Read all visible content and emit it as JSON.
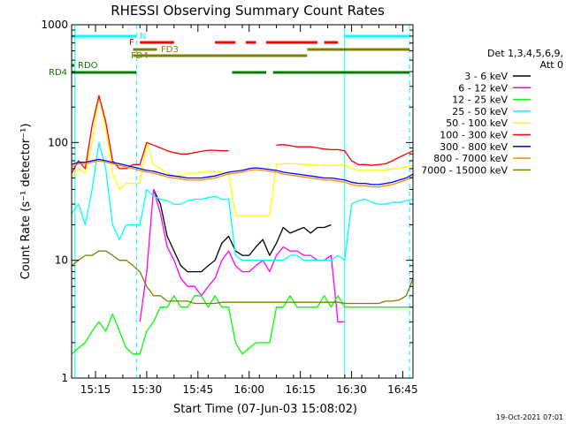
{
  "chart_data": {
    "type": "line",
    "title": "RHESSI Observing Summary Count Rates",
    "xlabel": "Start Time (07-Jun-03 15:08:02)",
    "ylabel": "Count Rate (s⁻¹ detector⁻¹)",
    "xlim": [
      "15:08",
      "16:48"
    ],
    "ylim": [
      1,
      1000
    ],
    "yscale": "log",
    "x_ticks": [
      "15:15",
      "15:30",
      "15:45",
      "16:00",
      "16:15",
      "16:30",
      "16:45"
    ],
    "y_ticks": [
      "1",
      "10",
      "100",
      "1000"
    ],
    "legend_header": [
      "Det 1,3,4,5,6,9,",
      "Att 0"
    ],
    "legend_position": "right",
    "x": [
      "15:08",
      "15:10",
      "15:12",
      "15:14",
      "15:16",
      "15:18",
      "15:20",
      "15:22",
      "15:24",
      "15:26",
      "15:28",
      "15:30",
      "15:32",
      "15:34",
      "15:36",
      "15:38",
      "15:40",
      "15:42",
      "15:44",
      "15:46",
      "15:48",
      "15:50",
      "15:52",
      "15:54",
      "15:56",
      "15:58",
      "16:00",
      "16:02",
      "16:04",
      "16:06",
      "16:08",
      "16:10",
      "16:12",
      "16:14",
      "16:16",
      "16:18",
      "16:20",
      "16:22",
      "16:24",
      "16:26",
      "16:28",
      "16:30",
      "16:32",
      "16:34",
      "16:36",
      "16:38",
      "16:40",
      "16:42",
      "16:44",
      "16:46",
      "16:48"
    ],
    "series": [
      {
        "name": "3 - 6 keV",
        "color": "#000000",
        "values": [
          null,
          null,
          null,
          null,
          null,
          null,
          null,
          null,
          null,
          null,
          null,
          null,
          40,
          30,
          16,
          12,
          9,
          8,
          8,
          8,
          9,
          10,
          14,
          16,
          12,
          11,
          11,
          13,
          15,
          11,
          14,
          19,
          17,
          18,
          19,
          17,
          19,
          19,
          20,
          null,
          null,
          null,
          null,
          null,
          null,
          null,
          null,
          null,
          null,
          null,
          null
        ]
      },
      {
        "name": "6 - 12 keV",
        "color": "#ff00ff",
        "values": [
          null,
          null,
          null,
          null,
          null,
          null,
          null,
          null,
          null,
          null,
          3,
          8,
          40,
          25,
          13,
          10,
          7,
          6,
          6,
          5,
          6,
          7,
          10,
          12,
          9,
          8,
          8,
          9,
          10,
          8,
          11,
          13,
          12,
          12,
          11,
          11,
          10,
          10,
          11,
          3,
          3,
          null,
          null,
          null,
          null,
          null,
          null,
          null,
          null,
          null,
          null
        ]
      },
      {
        "name": "12 - 25 keV",
        "color": "#00ff00",
        "values": [
          1.6,
          1.8,
          2,
          2.5,
          3,
          2.5,
          3.5,
          2.5,
          1.8,
          1.6,
          1.6,
          2.5,
          3,
          4,
          4,
          5,
          4,
          4,
          5,
          5,
          4,
          5,
          4,
          4,
          2,
          1.6,
          1.8,
          2,
          2,
          2,
          4,
          4,
          5,
          4,
          4,
          4,
          4,
          5,
          4,
          5,
          4,
          4,
          4,
          4,
          4,
          4,
          4,
          4,
          4,
          4,
          4
        ]
      },
      {
        "name": "25 - 50 keV",
        "color": "#00ffff",
        "values": [
          25,
          30,
          20,
          40,
          100,
          60,
          20,
          15,
          20,
          20,
          20,
          40,
          35,
          33,
          32,
          30,
          30,
          32,
          33,
          33,
          34,
          35,
          33,
          33,
          11,
          10,
          10,
          10,
          10,
          10,
          10,
          10,
          11,
          11,
          10,
          10,
          10,
          10,
          10,
          11,
          10,
          30,
          32,
          33,
          31,
          30,
          30,
          31,
          31,
          32,
          33
        ]
      },
      {
        "name": "50 - 100 keV",
        "color": "#ffff00",
        "values": [
          50,
          60,
          55,
          100,
          250,
          130,
          55,
          40,
          45,
          45,
          45,
          100,
          65,
          60,
          55,
          52,
          52,
          55,
          55,
          56,
          57,
          57,
          56,
          55,
          24,
          24,
          24,
          24,
          24,
          24,
          65,
          66,
          66,
          66,
          65,
          65,
          64,
          64,
          64,
          64,
          65,
          60,
          58,
          58,
          58,
          58,
          58,
          60,
          60,
          62,
          64
        ]
      },
      {
        "name": "100 - 300 keV",
        "color": "#ff0000",
        "values": [
          55,
          70,
          60,
          140,
          250,
          150,
          70,
          60,
          60,
          65,
          65,
          100,
          95,
          90,
          85,
          82,
          80,
          80,
          82,
          84,
          86,
          86,
          85,
          85,
          null,
          null,
          null,
          null,
          null,
          null,
          95,
          96,
          94,
          92,
          92,
          92,
          90,
          88,
          87,
          87,
          85,
          70,
          65,
          65,
          64,
          65,
          66,
          70,
          75,
          80,
          85
        ]
      },
      {
        "name": "300 - 800 keV",
        "color": "#0000ff",
        "values": [
          65,
          68,
          68,
          70,
          72,
          70,
          68,
          66,
          64,
          62,
          60,
          58,
          57,
          55,
          53,
          52,
          51,
          50,
          50,
          50,
          51,
          52,
          54,
          56,
          57,
          58,
          60,
          61,
          60,
          59,
          58,
          56,
          55,
          54,
          53,
          52,
          51,
          50,
          50,
          49,
          48,
          46,
          45,
          45,
          44,
          44,
          45,
          46,
          48,
          50,
          54
        ]
      },
      {
        "name": "800 - 7000 keV",
        "color": "#ff8c00",
        "values": [
          62,
          66,
          66,
          68,
          70,
          68,
          66,
          64,
          62,
          60,
          58,
          56,
          55,
          53,
          51,
          50,
          49,
          48,
          48,
          48,
          49,
          50,
          52,
          54,
          55,
          56,
          58,
          59,
          58,
          57,
          56,
          54,
          53,
          52,
          51,
          50,
          49,
          48,
          48,
          47,
          46,
          44,
          43,
          43,
          42,
          42,
          43,
          44,
          46,
          48,
          52
        ]
      },
      {
        "name": "7000 - 15000 keV",
        "color": "#808000",
        "values": [
          9,
          10,
          11,
          11,
          12,
          12,
          11,
          10,
          10,
          9,
          8,
          6,
          5,
          5,
          4.5,
          4.5,
          4.5,
          4.5,
          4.3,
          4.3,
          4.3,
          4.3,
          4.4,
          4.4,
          4.4,
          4.4,
          4.4,
          4.4,
          4.4,
          4.4,
          4.4,
          4.4,
          4.4,
          4.4,
          4.4,
          4.4,
          4.4,
          4.4,
          4.4,
          4.4,
          4.3,
          4.3,
          4.3,
          4.3,
          4.3,
          4.3,
          4.5,
          4.5,
          4.6,
          5,
          7
        ]
      }
    ],
    "flag_bars": [
      {
        "label": "N",
        "color": "#00ffff",
        "segments": [
          [
            "15:08",
            "15:27"
          ],
          [
            "16:28",
            "16:47"
          ]
        ]
      },
      {
        "label": "F",
        "color": "#ff0000",
        "segments": [
          [
            "15:28",
            "15:38"
          ],
          [
            "15:50",
            "15:56"
          ],
          [
            "15:59",
            "16:02"
          ],
          [
            "16:05",
            "16:20"
          ],
          [
            "16:22",
            "16:26"
          ]
        ]
      },
      {
        "label": "FD3",
        "color": "#808000",
        "segments": [
          [
            "15:26",
            "15:33"
          ],
          [
            "16:17",
            "16:47"
          ]
        ]
      },
      {
        "label": "FD4",
        "color": "#808000",
        "segments": [
          [
            "15:26",
            "16:17"
          ]
        ]
      },
      {
        "label": "RDO",
        "color": "#008000",
        "segments": [
          [
            "15:08",
            "15:08"
          ]
        ]
      },
      {
        "label": "RD4",
        "color": "#008000",
        "segments": [
          [
            "15:08",
            "15:27"
          ],
          [
            "15:55",
            "16:05"
          ],
          [
            "16:07",
            "16:47"
          ]
        ]
      }
    ],
    "vertical_markers": [
      {
        "time": "15:09",
        "color": "#00ffff",
        "style": "solid"
      },
      {
        "time": "15:27",
        "color": "#00ffff",
        "style": "dashed"
      },
      {
        "time": "16:28",
        "color": "#00ffff",
        "style": "solid"
      },
      {
        "time": "16:47",
        "color": "#00ffff",
        "style": "dashed"
      }
    ]
  },
  "footer": {
    "timestamp": "19-Oct-2021 07:01"
  }
}
